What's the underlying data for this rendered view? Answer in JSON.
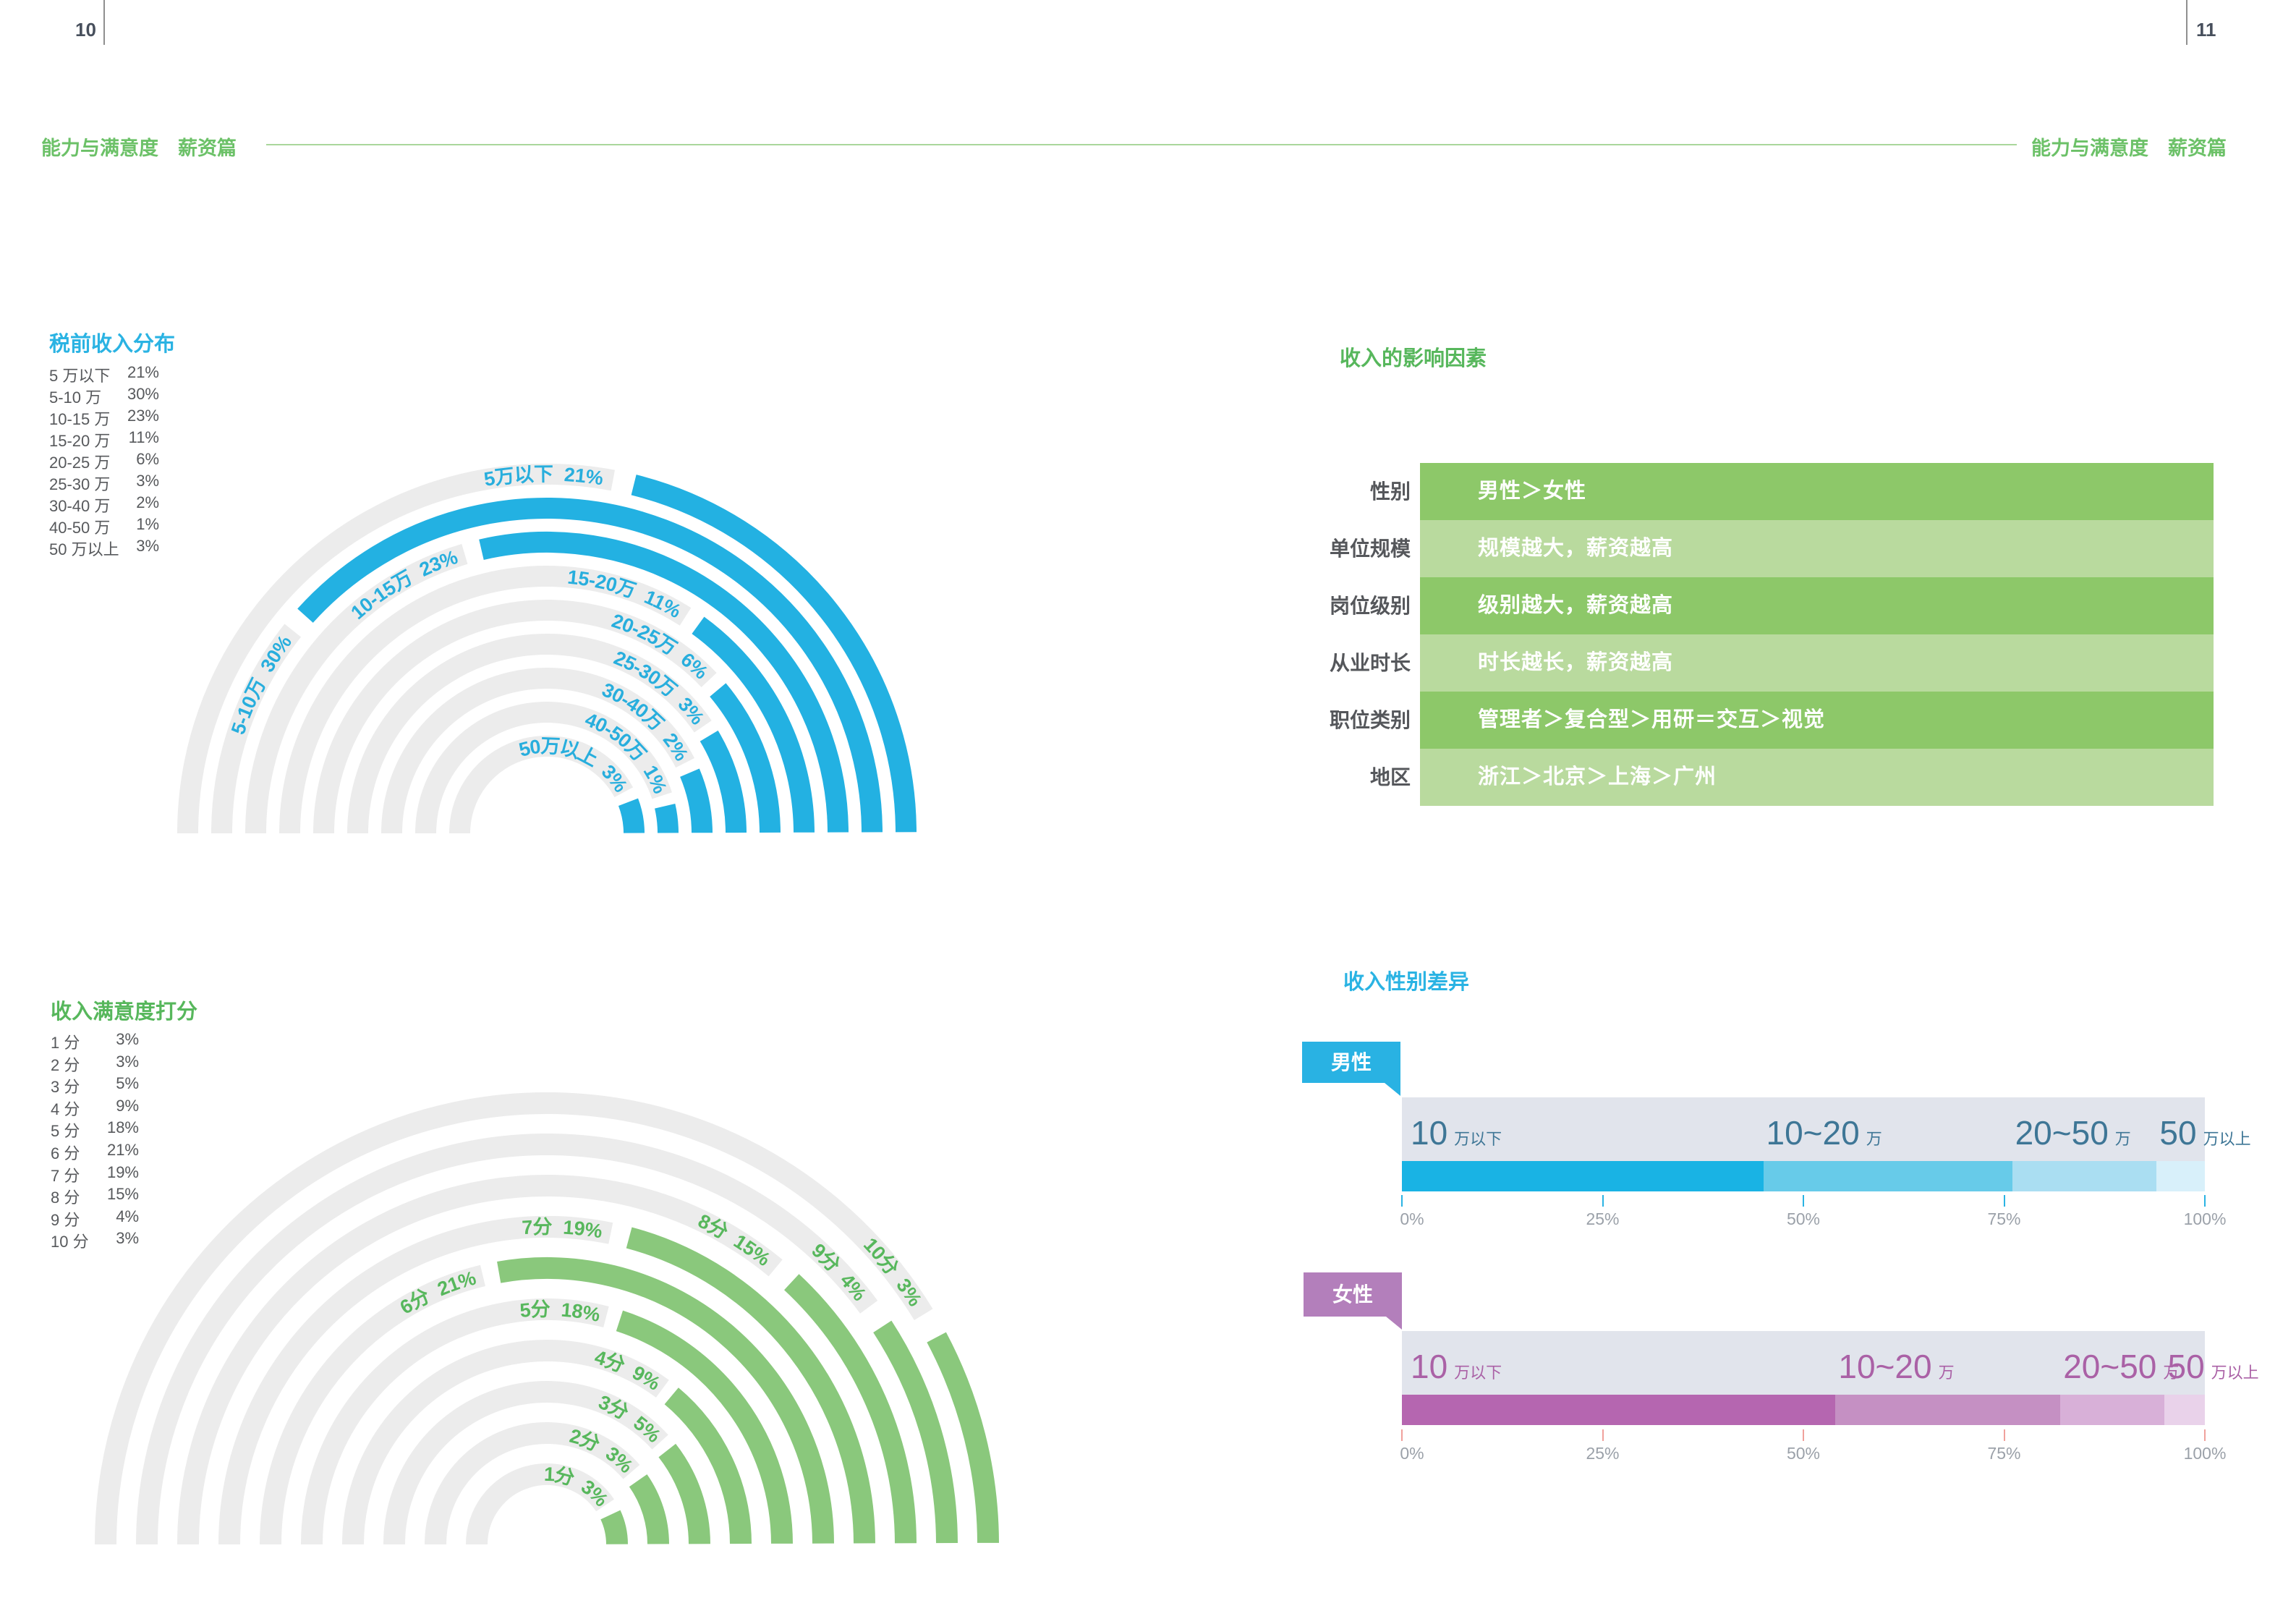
{
  "page": {
    "left_number": "10",
    "right_number": "11",
    "header": "能力与满意度　薪资篇"
  },
  "colors": {
    "accent_cyan": "#2ab3e3",
    "accent_green": "#57b75c",
    "header_green": "#6cc168",
    "text_dark": "#57595c",
    "track_gray": "#ececec"
  },
  "chart_data": [
    {
      "id": "income_distribution",
      "type": "bar",
      "variant": "half-radial-rings",
      "title": "税前收入分布",
      "unit": "%",
      "categories": [
        "5 万以下",
        "5-10 万",
        "10-15 万",
        "15-20 万",
        "20-25 万",
        "25-30 万",
        "30-40 万",
        "40-50 万",
        "50 万以上"
      ],
      "values": [
        21,
        30,
        23,
        11,
        6,
        3,
        2,
        1,
        3
      ],
      "rings_outer_to_inner": [
        {
          "label": "5万以下",
          "pct": "21%",
          "end_deg": 76
        },
        {
          "label": "5-10万",
          "pct": "30%",
          "end_deg": 138
        },
        {
          "label": "10-15万",
          "pct": "23%",
          "end_deg": 103
        },
        {
          "label": "15-20万",
          "pct": "11%",
          "end_deg": 54
        },
        {
          "label": "20-25万",
          "pct": "6%",
          "end_deg": 40
        },
        {
          "label": "25-30万",
          "pct": "3%",
          "end_deg": 31
        },
        {
          "label": "30-40万",
          "pct": "2%",
          "end_deg": 23
        },
        {
          "label": "40-50万",
          "pct": "1%",
          "end_deg": 13
        },
        {
          "label": "50万以上",
          "pct": "3%",
          "end_deg": 21
        }
      ],
      "colors": {
        "arc": "#23b1e2",
        "track": "#ececec",
        "label_text": "#28aedd",
        "title": "#2ab3e3"
      }
    },
    {
      "id": "satisfaction_score",
      "type": "bar",
      "variant": "half-radial-rings",
      "title": "收入满意度打分",
      "unit": "%",
      "categories": [
        "1 分",
        "2 分",
        "3 分",
        "4 分",
        "5 分",
        "6 分",
        "7 分",
        "8 分",
        "9 分",
        "10 分"
      ],
      "values": [
        3,
        3,
        5,
        9,
        18,
        21,
        19,
        15,
        4,
        3
      ],
      "rings_outer_to_inner": [
        {
          "label": "10分",
          "pct": "3%",
          "end_deg": 28
        },
        {
          "label": "9分",
          "pct": "4%",
          "end_deg": 33
        },
        {
          "label": "8分",
          "pct": "15%",
          "end_deg": 47
        },
        {
          "label": "7分",
          "pct": "19%",
          "end_deg": 75
        },
        {
          "label": "6分",
          "pct": "21%",
          "end_deg": 100
        },
        {
          "label": "5分",
          "pct": "18%",
          "end_deg": 72
        },
        {
          "label": "4分",
          "pct": "9%",
          "end_deg": 50
        },
        {
          "label": "3分",
          "pct": "5%",
          "end_deg": 38
        },
        {
          "label": "2分",
          "pct": "3%",
          "end_deg": 35
        },
        {
          "label": "1分",
          "pct": "3%",
          "end_deg": 25
        }
      ],
      "colors": {
        "arc": "#8ac87c",
        "track": "#ececec",
        "label_text": "#57b75c",
        "title": "#57b75c"
      }
    },
    {
      "id": "influence_factors",
      "type": "table",
      "title": "收入的影响因素",
      "rows": [
        {
          "label": "性别",
          "value": "男性＞女性"
        },
        {
          "label": "单位规模",
          "value": "规模越大，薪资越高"
        },
        {
          "label": "岗位级别",
          "value": "级别越大，薪资越高"
        },
        {
          "label": "从业时长",
          "value": "时长越长，薪资越高"
        },
        {
          "label": "职位类别",
          "value": "管理者＞复合型＞用研＝交互＞视觉"
        },
        {
          "label": "地区",
          "value": "浙江＞北京＞上海＞广州"
        }
      ],
      "row_colors": [
        "#8dc869",
        "#b9da9e"
      ],
      "label_color": "#55575b"
    },
    {
      "id": "gender_difference",
      "type": "bar",
      "variant": "stacked-horizontal",
      "title": "收入性别差异",
      "x_ticks": [
        "0%",
        "25%",
        "50%",
        "75%",
        "100%"
      ],
      "series": [
        {
          "name": "男性",
          "tab_color": "#29b2e3",
          "tick_color": "#2ab3e3",
          "number_color": "#3e7696",
          "segments": [
            {
              "big": "10",
              "small": "万以下",
              "value": 45,
              "color": "#19b3e4"
            },
            {
              "big": "10~20",
              "small": "万",
              "value": 31,
              "color": "#67cbe9"
            },
            {
              "big": "20~50",
              "small": "万",
              "value": 18,
              "color": "#aadef2"
            },
            {
              "big": "50",
              "small": "万以上",
              "value": 6,
              "color": "#d8f0fa"
            }
          ]
        },
        {
          "name": "女性",
          "tab_color": "#b37fbb",
          "tick_color": "#f0a19c",
          "number_color": "#aa61a6",
          "segments": [
            {
              "big": "10",
              "small": "万以下",
              "value": 54,
              "color": "#b566b0"
            },
            {
              "big": "10~20",
              "small": "万",
              "value": 28,
              "color": "#c590c3"
            },
            {
              "big": "20~50",
              "small": "万",
              "value": 13,
              "color": "#d8b0d8"
            },
            {
              "big": "50",
              "small": "万以上",
              "value": 5,
              "color": "#e9d2ea"
            }
          ]
        }
      ]
    }
  ]
}
